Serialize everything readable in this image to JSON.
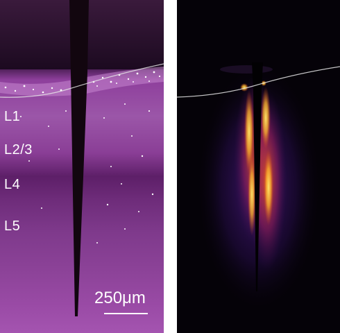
{
  "left_panel": {
    "layer_labels": [
      "L1",
      "L2/3",
      "L4",
      "L5"
    ],
    "scale_bar_label": "250μm",
    "colors": {
      "tissue": "#7a2f86",
      "tissue_dark": "#3a1040",
      "surface_line": "#e8e8e8",
      "cells": "#ffffff"
    }
  },
  "right_panel": {
    "colors": {
      "background": "#050208",
      "glow_hot": "#ffd23a",
      "glow_mid": "#d9441c",
      "glow_cool": "#5a1e9a",
      "surface_line": "#e8e8e8"
    }
  }
}
